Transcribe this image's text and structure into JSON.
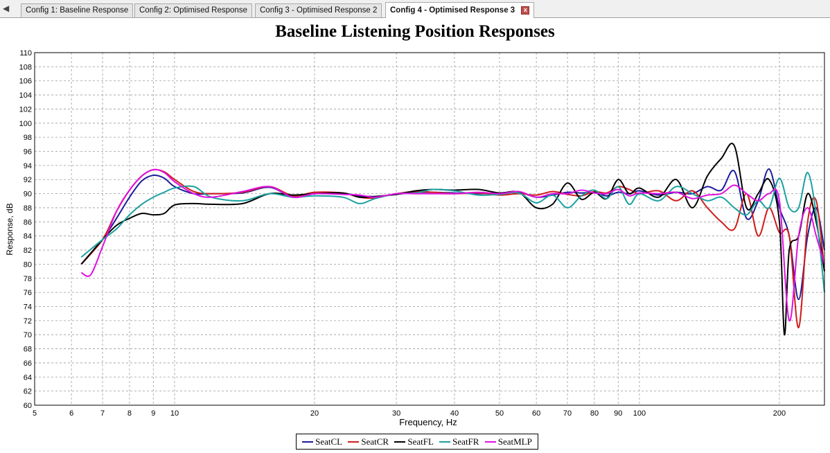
{
  "tabs": [
    {
      "label": "Config 1: Baseline Response",
      "active": false
    },
    {
      "label": "Config 2: Optimised Response",
      "active": false
    },
    {
      "label": "Config 3 - Optimised Response 2",
      "active": false
    },
    {
      "label": "Config 4 - Optimised Response 3",
      "active": true
    }
  ],
  "tab_scroll_glyph": "◀",
  "tab_close_glyph": "x",
  "chart_data": {
    "type": "line",
    "title": "Baseline Listening Position Responses",
    "xlabel": "Frequency, Hz",
    "ylabel": "Response, dB",
    "xscale": "log",
    "xlim": [
      5,
      250
    ],
    "ylim": [
      60,
      110
    ],
    "yticks": [
      60,
      62,
      64,
      66,
      68,
      70,
      72,
      74,
      76,
      78,
      80,
      82,
      84,
      86,
      88,
      90,
      92,
      94,
      96,
      98,
      100,
      102,
      104,
      106,
      108,
      110
    ],
    "xticks": [
      5,
      6,
      7,
      8,
      9,
      10,
      20,
      30,
      40,
      50,
      60,
      70,
      80,
      90,
      100,
      200
    ],
    "grid": true,
    "legend_position": "bottom-center",
    "series": [
      {
        "name": "SeatCL",
        "color": "#1c1c9c",
        "x": [
          6.3,
          7,
          7.5,
          8,
          8.5,
          9,
          9.5,
          10,
          11,
          12,
          14,
          16,
          18,
          20,
          23,
          25,
          27,
          30,
          33,
          36,
          40,
          45,
          50,
          55,
          60,
          65,
          70,
          75,
          80,
          85,
          90,
          95,
          100,
          110,
          120,
          130,
          140,
          150,
          160,
          170,
          180,
          190,
          200,
          210,
          220,
          230,
          240,
          250
        ],
        "y": [
          80,
          83.5,
          86.5,
          89.5,
          91.8,
          92.6,
          92.2,
          91,
          90,
          90,
          90.1,
          90.9,
          89.5,
          90,
          90,
          89.7,
          89.6,
          89.9,
          90.2,
          90.2,
          90.1,
          90,
          90.1,
          90.2,
          89.5,
          89.8,
          90.2,
          90.1,
          90.2,
          89.7,
          90.2,
          90,
          90.4,
          89.8,
          90.2,
          90,
          91,
          90.5,
          93.2,
          86.5,
          89,
          93.5,
          88,
          84,
          75,
          84,
          88,
          82
        ]
      },
      {
        "name": "SeatCR",
        "color": "#d01c1c",
        "x": [
          6.3,
          7,
          7.5,
          8,
          8.5,
          9,
          9.5,
          10,
          11,
          12,
          14,
          16,
          18,
          20,
          23,
          25,
          27,
          30,
          33,
          36,
          40,
          45,
          50,
          55,
          60,
          65,
          70,
          75,
          80,
          85,
          90,
          95,
          100,
          110,
          120,
          130,
          140,
          150,
          160,
          170,
          180,
          190,
          200,
          210,
          220,
          230,
          240,
          250
        ],
        "y": [
          80,
          83.5,
          87.5,
          90.5,
          92.5,
          93.4,
          93.1,
          92,
          90.3,
          90,
          90.2,
          91,
          89.7,
          90.2,
          90.1,
          89.5,
          89.4,
          90,
          90.3,
          90.2,
          90,
          90.1,
          89.8,
          90,
          89.8,
          90.3,
          89.9,
          89.7,
          90.3,
          90.1,
          91,
          90.6,
          90,
          90.4,
          89,
          90.4,
          88,
          86,
          85,
          90,
          84,
          88,
          84.5,
          84,
          71,
          86,
          89,
          79
        ]
      },
      {
        "name": "SeatFL",
        "color": "#000000",
        "x": [
          6.3,
          7,
          7.5,
          8,
          8.5,
          9,
          9.5,
          10,
          11,
          12,
          14,
          16,
          18,
          20,
          23,
          25,
          27,
          30,
          33,
          36,
          40,
          45,
          50,
          55,
          60,
          65,
          70,
          75,
          80,
          85,
          90,
          95,
          100,
          110,
          120,
          130,
          140,
          150,
          160,
          170,
          180,
          190,
          200,
          205,
          210,
          220,
          230,
          240,
          250
        ],
        "y": [
          80,
          83.5,
          85.5,
          86.5,
          87.2,
          87,
          87.2,
          88.4,
          88.6,
          88.5,
          88.6,
          90,
          89.8,
          90,
          90.1,
          89.5,
          89.6,
          89.9,
          90.4,
          90.6,
          90.5,
          90.6,
          90.1,
          90.2,
          88,
          88.5,
          91.5,
          89.2,
          90.2,
          89.3,
          92,
          90,
          90.8,
          89.5,
          92,
          88,
          92.5,
          95,
          96.8,
          88,
          90,
          92,
          86,
          70,
          82,
          84,
          90,
          86,
          79
        ]
      },
      {
        "name": "SeatFR",
        "color": "#1ca0a0",
        "x": [
          6.3,
          7,
          7.5,
          8,
          8.5,
          9,
          9.5,
          10,
          11,
          12,
          14,
          16,
          18,
          20,
          23,
          25,
          27,
          30,
          33,
          36,
          40,
          45,
          50,
          55,
          60,
          65,
          70,
          75,
          80,
          85,
          90,
          95,
          100,
          110,
          120,
          130,
          140,
          150,
          160,
          170,
          180,
          190,
          200,
          210,
          220,
          230,
          240,
          250
        ],
        "y": [
          81,
          83.5,
          85,
          87,
          88.5,
          89.5,
          90.2,
          90.8,
          91,
          89.5,
          89,
          90,
          89.5,
          89.7,
          89.5,
          88.6,
          89.3,
          90,
          90.1,
          90.6,
          90.4,
          89.8,
          89.9,
          90.1,
          88.7,
          89.8,
          88,
          89.7,
          90.5,
          89.3,
          91,
          88.5,
          90,
          89,
          91,
          90,
          89,
          89.5,
          88,
          87,
          89,
          88,
          92.2,
          88,
          88,
          93,
          87,
          76
        ]
      },
      {
        "name": "SeatMLP",
        "color": "#e010e0",
        "x": [
          6.3,
          6.6,
          7,
          7.5,
          8,
          8.5,
          9,
          9.5,
          10,
          11,
          12,
          14,
          16,
          18,
          20,
          23,
          25,
          27,
          30,
          33,
          36,
          40,
          45,
          50,
          55,
          60,
          65,
          70,
          75,
          80,
          85,
          90,
          95,
          100,
          110,
          120,
          130,
          140,
          150,
          160,
          170,
          180,
          190,
          200,
          210,
          220,
          230,
          240,
          250
        ],
        "y": [
          78.8,
          78.5,
          82.5,
          87.5,
          90.5,
          92.5,
          93.4,
          93,
          91.7,
          90,
          89.5,
          90.3,
          91,
          89.5,
          90,
          89.9,
          89.8,
          89.5,
          90,
          90,
          90,
          90,
          90.2,
          90,
          90.3,
          89.5,
          90,
          90,
          90.5,
          90.1,
          90,
          90.6,
          89.7,
          90.1,
          90,
          90.2,
          89.3,
          89.8,
          90,
          91.2,
          90,
          89,
          90,
          89,
          72,
          84,
          88,
          84,
          80
        ]
      }
    ]
  }
}
